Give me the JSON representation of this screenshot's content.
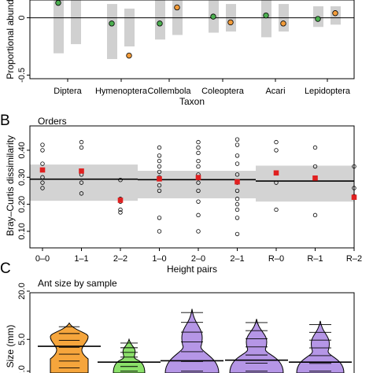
{
  "chart_data": [
    {
      "panel_letter": "",
      "type": "scatter",
      "ylabel": "Proportional abund",
      "xlabel": "Taxon",
      "categories": [
        "Diptera",
        "Hymenoptera",
        "Collembola",
        "Coleoptera",
        "Acari",
        "Lepidoptera"
      ],
      "ylim": [
        -0.6,
        0.1
      ],
      "yticks": [
        {
          "value": 0,
          "label": "0"
        },
        {
          "value": -0.5,
          "label": "-0.5"
        }
      ],
      "ref_line": 0,
      "series": [
        {
          "color": "#4caf50",
          "values": [
            0.13,
            -0.05,
            -0.05,
            0.01,
            0.02,
            -0.01
          ]
        },
        {
          "color": "#f39c3a",
          "values": [
            null,
            -0.33,
            0.09,
            -0.04,
            -0.05,
            0.04
          ]
        }
      ],
      "ranges": [
        [
          [
            -0.31,
            0.27
          ],
          [
            -0.23,
            0.27
          ]
        ],
        [
          [
            -0.36,
            0.12
          ],
          [
            -0.25,
            0.08
          ]
        ],
        [
          [
            -0.19,
            0.21
          ],
          [
            -0.15,
            0.15
          ]
        ],
        [
          [
            -0.13,
            0.15
          ],
          [
            -0.12,
            0.12
          ]
        ],
        [
          [
            -0.17,
            0.16
          ],
          [
            -0.12,
            0.12
          ]
        ],
        [
          [
            -0.08,
            0.1
          ],
          [
            -0.06,
            0.1
          ]
        ]
      ]
    },
    {
      "panel_letter": "B",
      "type": "scatter",
      "title": "Orders",
      "ylabel": "Bray–Curtis dissimilarity",
      "xlabel": "Height pairs",
      "categories": [
        "0–0",
        "1–1",
        "2–2",
        "1–0",
        "2–0",
        "2–1",
        "R–0",
        "R–1",
        "R–2"
      ],
      "ylim": [
        0.03,
        0.49
      ],
      "yticks": [
        {
          "value": 0.1,
          "label": "0.10"
        },
        {
          "value": 0.2,
          "label": "0.20"
        },
        {
          "value": 0.3,
          "label": "0.30"
        },
        {
          "value": 0.4,
          "label": "0.40"
        }
      ],
      "groups": [
        {
          "from": 0,
          "to": 2,
          "band": [
            0.213,
            0.347
          ],
          "line": 0.293
        },
        {
          "from": 3,
          "to": 5,
          "band": [
            0.222,
            0.324
          ],
          "line": 0.291
        },
        {
          "from": 6,
          "to": 8,
          "band": [
            0.21,
            0.343
          ],
          "line": 0.286
        }
      ],
      "means": [
        0.327,
        0.323,
        0.215,
        0.294,
        0.299,
        0.283,
        0.316,
        0.297,
        0.226
      ],
      "points": [
        [
          0.42,
          0.4,
          0.35,
          0.3,
          0.28,
          0.26
        ],
        [
          0.43,
          0.41,
          0.31,
          0.28,
          0.24
        ],
        [
          0.29,
          0.22,
          0.21,
          0.18,
          0.17
        ],
        [
          0.41,
          0.38,
          0.36,
          0.34,
          0.32,
          0.3,
          0.27,
          0.25,
          0.15,
          0.1
        ],
        [
          0.43,
          0.41,
          0.39,
          0.36,
          0.34,
          0.31,
          0.28,
          0.25,
          0.21,
          0.16,
          0.1
        ],
        [
          0.44,
          0.42,
          0.38,
          0.35,
          0.31,
          0.28,
          0.25,
          0.22,
          0.2,
          0.18,
          0.15,
          0.09
        ],
        [
          0.43,
          0.4,
          0.28,
          0.18
        ],
        [
          0.41,
          0.34,
          0.16
        ],
        [
          0.34,
          0.26,
          0.23
        ]
      ]
    },
    {
      "panel_letter": "C",
      "type": "violin",
      "title": "Ant size by sample",
      "ylabel": "Size (mm)",
      "yscale": "log",
      "ylim": [
        1.9,
        20
      ],
      "yticks": [
        {
          "value": 2,
          "label": "2.0"
        },
        {
          "value": 5,
          "label": "5.0"
        },
        {
          "value": 20,
          "label": "20.0"
        }
      ],
      "violins": [
        {
          "color": "#f5a53c",
          "median": 4.1,
          "min": 2.2,
          "max": 8.0
        },
        {
          "color": "#8be06a",
          "median": 2.6,
          "min": 2.0,
          "max": 5.0
        },
        {
          "color": "#b596e6",
          "median": 2.7,
          "min": 2.0,
          "max": 12.0
        },
        {
          "color": "#b596e6",
          "median": 2.75,
          "min": 2.0,
          "max": 9.0
        },
        {
          "color": "#b596e6",
          "median": 2.6,
          "min": 2.0,
          "max": 8.5
        }
      ]
    }
  ]
}
